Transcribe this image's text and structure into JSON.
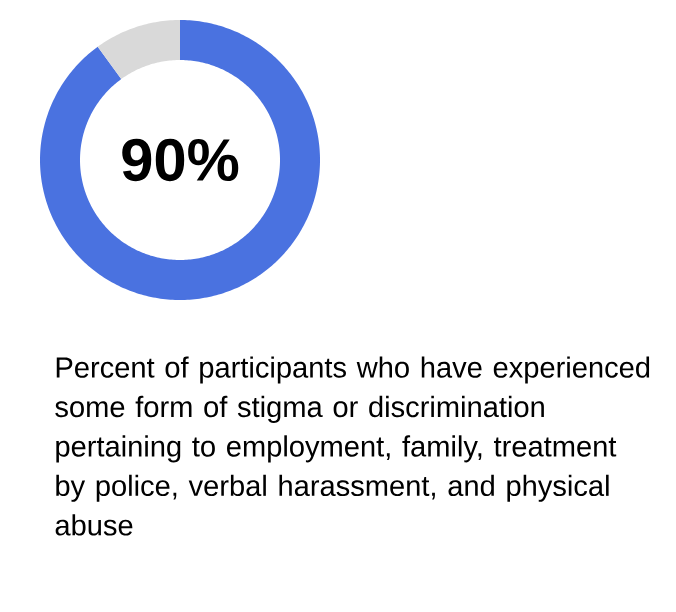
{
  "chart_data": {
    "type": "donut",
    "categories": [
      null,
      null
    ],
    "values": [
      90,
      10
    ],
    "colors": [
      "#4a72e0",
      "#d9d9d9"
    ],
    "annotations": [
      "90%",
      "Percent of participants who have experienced some form of stigma or discrimination pertaining to employment, family, treatment by police, verbal harassment, and physical abuse"
    ]
  }
}
